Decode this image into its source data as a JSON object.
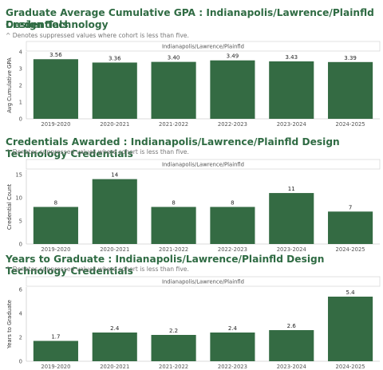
{
  "colors": {
    "bar": "#346b43",
    "title": "#2f6b43",
    "note": "#777777",
    "axis": "#555555",
    "grid": "#e6e6e6"
  },
  "sections": [
    {
      "title_line1": "Graduate Average Cumulative GPA : Indianapolis/Lawrence/Plainfld Design Technology",
      "title_line2": "Credentials",
      "note": "^ Denotes suppressed values where cohort is less than five."
    },
    {
      "title_line1": "Credentials Awarded : Indianapolis/Lawrence/Plainfld Design Technology Credentials",
      "note": "^ Denotes suppressed values where cohort is less than five."
    },
    {
      "title_line1": "Years to Graduate : Indianapolis/Lawrence/Plainfld Design Technology Credentials",
      "note": "^ Denotes suppressed values where cohort is less than five."
    }
  ],
  "chart_data": [
    {
      "type": "bar",
      "header": "Indianapolis/Lawrence/Plainfld",
      "ylabel": "Avg Cumulative GPA",
      "categories": [
        "2019-2020",
        "2020-2021",
        "2021-2022",
        "2022-2023",
        "2023-2024",
        "2024-2025"
      ],
      "values": [
        3.56,
        3.36,
        3.4,
        3.49,
        3.43,
        3.39
      ],
      "value_labels": [
        "3.56",
        "3.36",
        "3.40",
        "3.49",
        "3.43",
        "3.39"
      ],
      "ylim": [
        0,
        4
      ],
      "yticks": [
        0,
        1,
        2,
        3,
        4
      ],
      "grid": false
    },
    {
      "type": "bar",
      "header": "Indianapolis/Lawrence/Plainfld",
      "ylabel": "Credential Count",
      "categories": [
        "2019-2020",
        "2020-2021",
        "2021-2022",
        "2022-2023",
        "2023-2024",
        "2024-2025"
      ],
      "values": [
        8,
        14,
        8,
        8,
        11,
        7
      ],
      "value_labels": [
        "8",
        "14",
        "8",
        "8",
        "11",
        "7"
      ],
      "ylim": [
        0,
        16
      ],
      "yticks": [
        0,
        5,
        10,
        15
      ],
      "grid": false
    },
    {
      "type": "bar",
      "header": "Indianapolis/Lawrence/Plainfld",
      "ylabel": "Years to Graduate",
      "categories": [
        "2019-2020",
        "2020-2021",
        "2021-2022",
        "2022-2023",
        "2023-2024",
        "2024-2025"
      ],
      "values": [
        1.7,
        2.4,
        2.2,
        2.4,
        2.6,
        5.4
      ],
      "value_labels": [
        "1.7",
        "2.4",
        "2.2",
        "2.4",
        "2.6",
        "5.4"
      ],
      "ylim": [
        0,
        6.2
      ],
      "yticks": [
        0,
        2,
        4,
        6
      ],
      "grid": false
    }
  ]
}
